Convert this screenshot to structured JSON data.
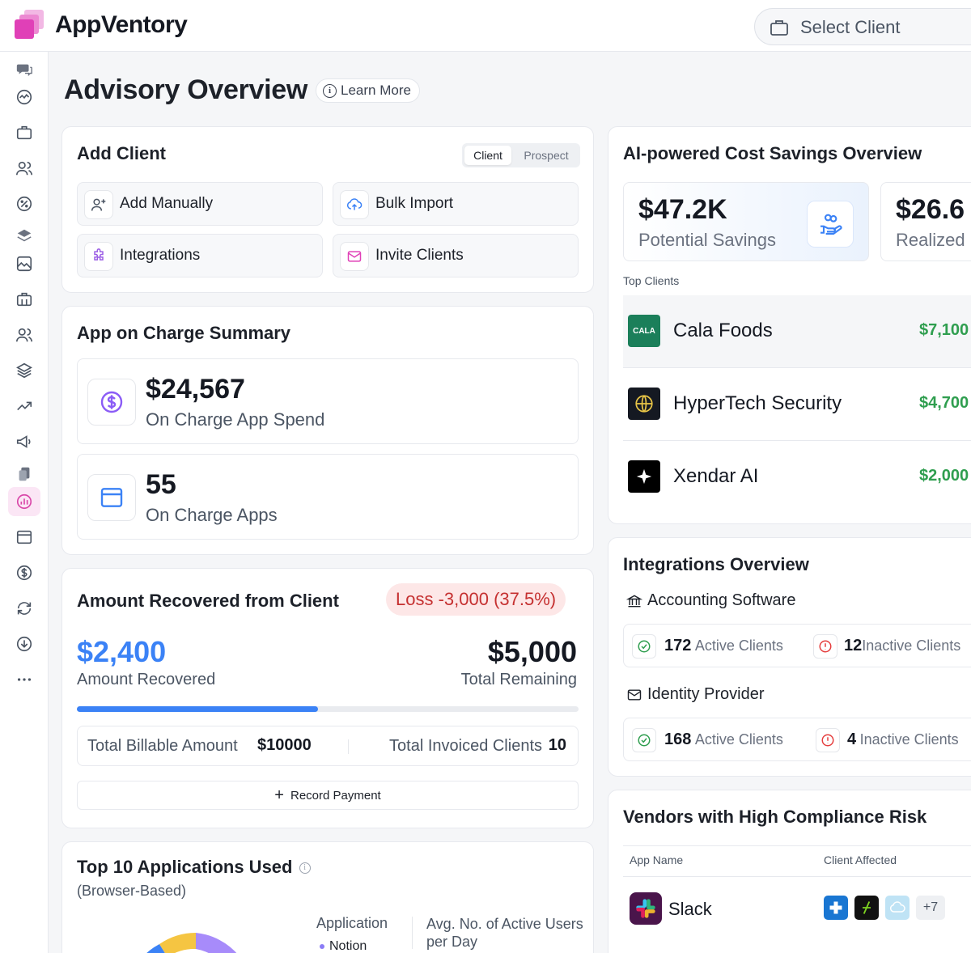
{
  "app": {
    "name": "AppVentory"
  },
  "header": {
    "select_client": "Select Client"
  },
  "page": {
    "title": "Advisory Overview",
    "learn_more": "Learn More"
  },
  "add_client": {
    "title": "Add Client",
    "toggle": {
      "active": "Client",
      "inactive": "Prospect"
    },
    "actions": [
      {
        "label": "Add Manually",
        "icon": "user-plus-icon"
      },
      {
        "label": "Bulk Import",
        "icon": "cloud-upload-icon"
      },
      {
        "label": "Integrations",
        "icon": "puzzle-icon"
      },
      {
        "label": "Invite Clients",
        "icon": "mail-icon"
      }
    ]
  },
  "charge_summary": {
    "title": "App on Charge Summary",
    "spend": {
      "value": "$24,567",
      "label": "On Charge App Spend"
    },
    "apps": {
      "value": "55",
      "label": "On Charge Apps"
    }
  },
  "recovered": {
    "title": "Amount Recovered from Client",
    "loss_badge": "Loss -3,000 (37.5%)",
    "amount_recovered": "$2,400",
    "amount_recovered_label": "Amount Recovered",
    "total_remaining": "$5,000",
    "total_remaining_label": "Total Remaining",
    "progress_fraction": 0.48,
    "billable_label": "Total Billable Amount",
    "billable_value": "$10000",
    "invoiced_label": "Total Invoiced Clients",
    "invoiced_value": "10",
    "record_payment": "Record Payment"
  },
  "top_apps": {
    "title": "Top 10 Applications Used",
    "subtitle": "(Browser-Based)",
    "col_application": "Application",
    "col_avg": "Avg. No. of Active Users per Day",
    "legend_first": "Notion",
    "donut_colors": [
      "#3b82f6",
      "#f5c542",
      "#a78bfa"
    ]
  },
  "ai_savings": {
    "title": "AI-powered Cost Savings Overview",
    "potential": {
      "value": "$47.2K",
      "label": "Potential Savings"
    },
    "realized": {
      "value": "$26.6",
      "label": "Realized"
    },
    "top_clients_label": "Top Clients",
    "clients": [
      {
        "name": "Cala Foods",
        "amount": "$7,100",
        "logo_text": "CALA"
      },
      {
        "name": "HyperTech Security",
        "amount": "$4,700"
      },
      {
        "name": "Xendar AI",
        "amount": "$2,000"
      }
    ]
  },
  "integrations": {
    "title": "Integrations Overview",
    "groups": [
      {
        "name": "Accounting Software",
        "active_count": "172",
        "active_label": "Active Clients",
        "inactive_count": "12",
        "inactive_label": "Inactive Clients"
      },
      {
        "name": "Identity Provider",
        "active_count": "168",
        "active_label": "Active Clients",
        "inactive_count": "4",
        "inactive_label": "Inactive Clients"
      }
    ]
  },
  "vendors": {
    "title": "Vendors with High Compliance Risk",
    "col_app": "App Name",
    "col_client": "Client Affected",
    "rows": [
      {
        "app": "Slack",
        "more": "+7"
      }
    ]
  },
  "colors": {
    "accent": "#3b82f6",
    "brand": "#e040b7",
    "success": "#2f9e4f",
    "danger": "#c53030"
  }
}
